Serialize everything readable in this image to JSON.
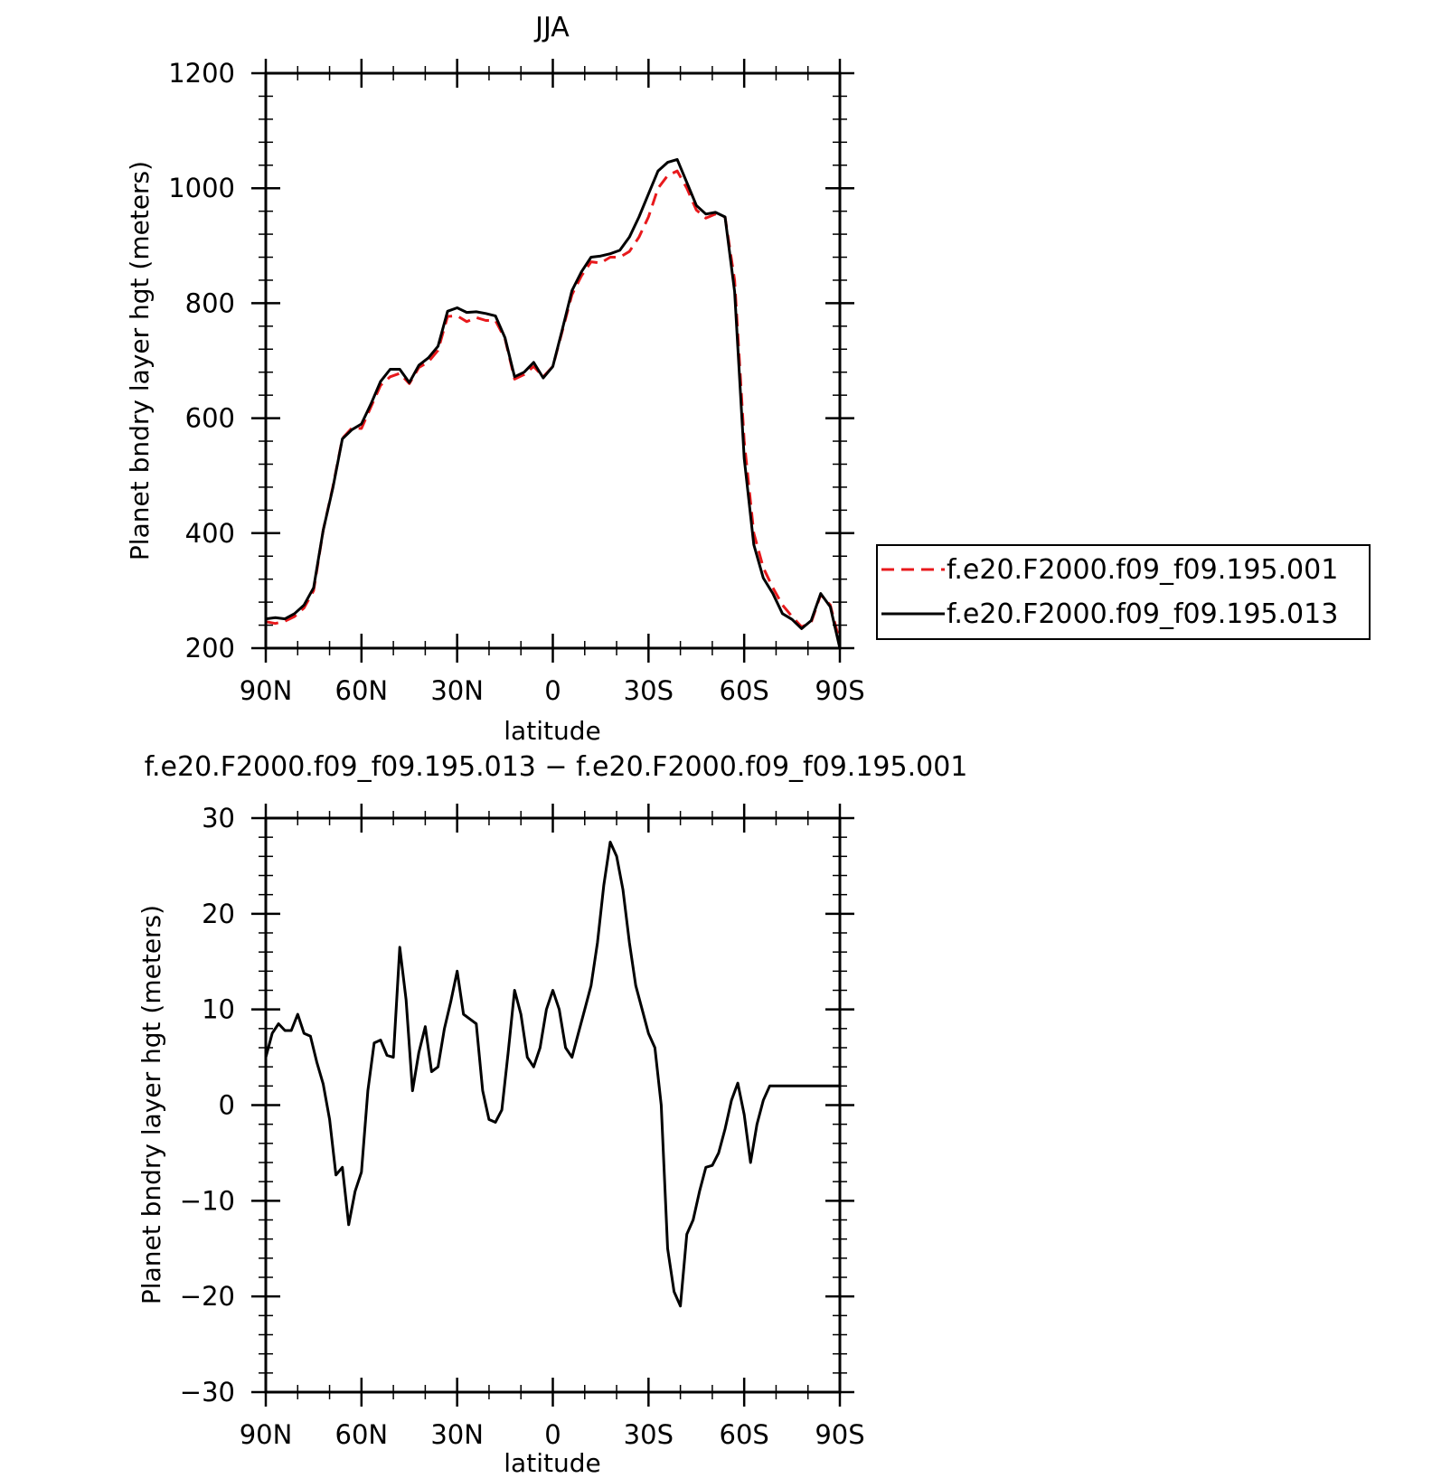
{
  "chart_data": [
    {
      "type": "line",
      "title": "JJA",
      "xlabel": "latitude",
      "ylabel": "Planet bndry layer hgt (meters)",
      "xlim": [
        90,
        -90
      ],
      "ylim": [
        200,
        1200
      ],
      "x_tick_values": [
        90,
        60,
        30,
        0,
        -30,
        -60,
        -90
      ],
      "x_tick_labels": [
        "90N",
        "60N",
        "30N",
        "0",
        "30S",
        "60S",
        "90S"
      ],
      "y_tick_values": [
        200,
        400,
        600,
        800,
        1000,
        1200
      ],
      "y_tick_labels": [
        "200",
        "400",
        "600",
        "800",
        "1000",
        "1200"
      ],
      "grid": false,
      "legend_position": "right",
      "x": [
        90,
        87,
        84,
        81,
        78,
        75,
        72,
        69,
        66,
        63,
        60,
        57,
        54,
        51,
        48,
        45,
        42,
        39,
        36,
        33,
        30,
        27,
        24,
        21,
        18,
        15,
        12,
        9,
        6,
        3,
        0,
        -3,
        -6,
        -9,
        -12,
        -15,
        -18,
        -21,
        -24,
        -27,
        -30,
        -33,
        -36,
        -39,
        -42,
        -45,
        -48,
        -51,
        -54,
        -57,
        -60,
        -63,
        -66,
        -69,
        -72,
        -75,
        -78,
        -81,
        -84,
        -87,
        -90
      ],
      "series": [
        {
          "name": "f.e20.F2000.f09_f09.195.001",
          "color": "#e8191c",
          "dash": "dashed",
          "values": [
            246,
            243,
            247,
            255,
            270,
            300,
            405,
            480,
            565,
            583,
            582,
            620,
            657,
            672,
            678,
            660,
            688,
            698,
            718,
            777,
            778,
            768,
            775,
            770,
            770,
            738,
            668,
            676,
            690,
            672,
            690,
            752,
            815,
            848,
            872,
            870,
            880,
            880,
            890,
            915,
            950,
            1000,
            1022,
            1030,
            1000,
            962,
            948,
            955,
            950,
            840,
            560,
            400,
            340,
            305,
            275,
            255,
            237,
            245,
            293,
            275,
            210
          ]
        },
        {
          "name": "f.e20.F2000.f09_f09.195.013",
          "color": "#000000",
          "dash": "solid",
          "values": [
            251,
            253,
            251,
            260,
            275,
            305,
            405,
            478,
            564,
            580,
            590,
            625,
            664,
            685,
            685,
            662,
            692,
            705,
            725,
            786,
            792,
            784,
            785,
            782,
            778,
            740,
            672,
            680,
            697,
            670,
            690,
            755,
            822,
            855,
            880,
            882,
            886,
            892,
            915,
            950,
            990,
            1030,
            1045,
            1050,
            1010,
            970,
            955,
            958,
            950,
            820,
            530,
            380,
            322,
            295,
            260,
            250,
            234,
            248,
            295,
            272,
            200
          ]
        }
      ]
    },
    {
      "type": "line",
      "title": "f.e20.F2000.f09_f09.195.013 − f.e20.F2000.f09_f09.195.001",
      "xlabel": "latitude",
      "ylabel": "Planet bndry layer hgt (meters)",
      "xlim": [
        90,
        -90
      ],
      "ylim": [
        -30,
        30
      ],
      "x_tick_values": [
        90,
        60,
        30,
        0,
        -30,
        -60,
        -90
      ],
      "x_tick_labels": [
        "90N",
        "60N",
        "30N",
        "0",
        "30S",
        "60S",
        "90S"
      ],
      "y_tick_values": [
        -30,
        -20,
        -10,
        0,
        10,
        20,
        30
      ],
      "y_tick_labels": [
        "−30",
        "−20",
        "−10",
        "0",
        "10",
        "20",
        "30"
      ],
      "grid": false,
      "x": [
        90,
        88,
        86,
        84,
        82,
        80,
        78,
        76,
        74,
        72,
        70,
        68,
        66,
        64,
        62,
        60,
        58,
        56,
        54,
        52,
        50,
        48,
        46,
        44,
        42,
        40,
        38,
        36,
        34,
        32,
        30,
        28,
        26,
        24,
        22,
        20,
        18,
        16,
        14,
        12,
        10,
        8,
        6,
        4,
        2,
        0,
        -2,
        -4,
        -6,
        -8,
        -10,
        -12,
        -14,
        -16,
        -18,
        -20,
        -22,
        -24,
        -26,
        -28,
        -30,
        -32,
        -34,
        -36,
        -38,
        -40,
        -42,
        -44,
        -46,
        -48,
        -50,
        -52,
        -54,
        -56,
        -58,
        -60,
        -62,
        -64,
        -66,
        -68,
        -70,
        -72,
        -74,
        -76,
        -78,
        -80,
        -82,
        -84,
        -86,
        -88,
        -90
      ],
      "series": [
        {
          "name": "",
          "color": "#000000",
          "dash": "solid",
          "values": [
            5,
            7.5,
            8.5,
            7.8,
            7.8,
            9.5,
            7.5,
            7.2,
            4.5,
            2.2,
            -1.5,
            -7.3,
            -6.5,
            -12.5,
            -9,
            -7,
            1.5,
            6.5,
            6.8,
            5.2,
            5,
            16.5,
            11,
            1.5,
            5.5,
            8.2,
            3.5,
            4,
            8,
            10.8,
            14,
            9.5,
            9,
            8.5,
            1.5,
            -1.5,
            -1.8,
            -0.5,
            5.5,
            12,
            9.5,
            5,
            4,
            6,
            10,
            12,
            10,
            6,
            5,
            7.5,
            10,
            12.5,
            17,
            23,
            27.5,
            26,
            22.5,
            17,
            12.5,
            10,
            7.5,
            6,
            0,
            -15,
            -19.5,
            -21,
            -13.5,
            -12,
            -9,
            -6.5,
            -6.3,
            -5,
            -2.5,
            0.5,
            2.3,
            -1,
            -6,
            -2,
            0.5,
            2,
            2,
            2,
            2,
            2,
            2,
            2,
            2,
            2,
            2,
            2,
            2
          ]
        }
      ]
    }
  ]
}
